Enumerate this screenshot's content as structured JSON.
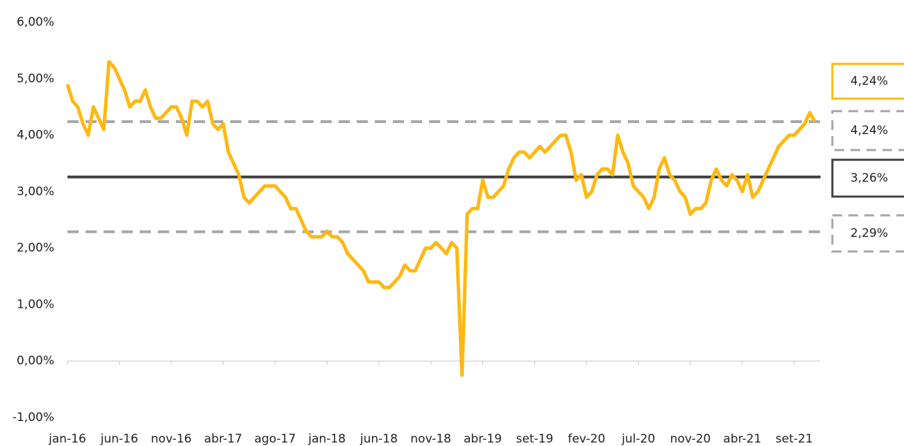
{
  "chart_data": {
    "type": "line",
    "categories": [
      "jan-16",
      null,
      null,
      null,
      null,
      null,
      null,
      null,
      null,
      null,
      "jun-16",
      null,
      null,
      null,
      null,
      null,
      null,
      null,
      null,
      null,
      "nov-16",
      null,
      null,
      null,
      null,
      null,
      null,
      null,
      null,
      null,
      "abr-17",
      null,
      null,
      null,
      null,
      null,
      null,
      null,
      null,
      null,
      "ago-17",
      null,
      null,
      null,
      null,
      null,
      null,
      null,
      null,
      null,
      "jan-18",
      null,
      null,
      null,
      null,
      null,
      null,
      null,
      null,
      null,
      "jun-18",
      null,
      null,
      null,
      null,
      null,
      null,
      null,
      null,
      null,
      "nov-18",
      null,
      null,
      null,
      null,
      null,
      null,
      null,
      null,
      null,
      "abr-19",
      null,
      null,
      null,
      null,
      null,
      null,
      null,
      null,
      null,
      "set-19",
      null,
      null,
      null,
      null,
      null,
      null,
      null,
      null,
      null,
      "fev-20",
      null,
      null,
      null,
      null,
      null,
      null,
      null,
      null,
      null,
      "jul-20",
      null,
      null,
      null,
      null,
      null,
      null,
      null,
      null,
      null,
      "nov-20",
      null,
      null,
      null,
      null,
      null,
      null,
      null,
      null,
      null,
      "abr-21",
      null,
      null,
      null,
      null,
      null,
      null,
      null,
      null,
      null,
      "set-21",
      null,
      null,
      null,
      null
    ],
    "series": [
      {
        "color": "#fdb913",
        "values": [
          4.9,
          4.6,
          4.5,
          4.2,
          4.0,
          4.5,
          4.3,
          4.1,
          5.3,
          5.2,
          5.0,
          4.8,
          4.5,
          4.6,
          4.6,
          4.8,
          4.5,
          4.3,
          4.3,
          4.4,
          4.5,
          4.5,
          4.3,
          4.0,
          4.6,
          4.6,
          4.5,
          4.6,
          4.2,
          4.1,
          4.2,
          3.7,
          3.5,
          3.3,
          2.9,
          2.8,
          2.9,
          3.0,
          3.1,
          3.1,
          3.1,
          3.0,
          2.9,
          2.7,
          2.7,
          2.5,
          2.3,
          2.2,
          2.2,
          2.2,
          2.3,
          2.2,
          2.2,
          2.1,
          1.9,
          1.8,
          1.7,
          1.6,
          1.4,
          1.4,
          1.4,
          1.3,
          1.3,
          1.4,
          1.5,
          1.7,
          1.6,
          1.6,
          1.8,
          2.0,
          2.0,
          2.1,
          2.0,
          1.9,
          2.1,
          2.0,
          -0.25,
          2.6,
          2.7,
          2.7,
          3.2,
          2.9,
          2.9,
          3.0,
          3.1,
          3.4,
          3.6,
          3.7,
          3.7,
          3.6,
          3.7,
          3.8,
          3.7,
          3.8,
          3.9,
          4.0,
          4.0,
          3.7,
          3.2,
          3.3,
          2.9,
          3.0,
          3.3,
          3.4,
          3.4,
          3.3,
          4.0,
          3.7,
          3.5,
          3.1,
          3.0,
          2.9,
          2.7,
          2.9,
          3.4,
          3.6,
          3.3,
          3.2,
          3.0,
          2.9,
          2.6,
          2.7,
          2.7,
          2.8,
          3.2,
          3.4,
          3.2,
          3.1,
          3.3,
          3.2,
          3.0,
          3.3,
          2.9,
          3.0,
          3.2,
          3.4,
          3.6,
          3.8,
          3.9,
          4.0,
          4.0,
          4.1,
          4.2,
          4.4,
          4.24
        ]
      }
    ],
    "ylim": [
      -1,
      6
    ],
    "yticks": [
      {
        "value": -1,
        "label": "-1,00%"
      },
      {
        "value": 0,
        "label": "0,00%"
      },
      {
        "value": 1,
        "label": "1,00%"
      },
      {
        "value": 2,
        "label": "2,00%"
      },
      {
        "value": 3,
        "label": "3,00%"
      },
      {
        "value": 4,
        "label": "4,00%"
      },
      {
        "value": 5,
        "label": "5,00%"
      },
      {
        "value": 6,
        "label": "6,00%"
      }
    ],
    "reference_lines": [
      {
        "value": 4.24,
        "label": "4,24%",
        "style": "dashed",
        "color": "#a6a6a6"
      },
      {
        "value": 3.26,
        "label": "3,26%",
        "style": "solid",
        "color": "#404040"
      },
      {
        "value": 2.29,
        "label": "2,29%",
        "style": "dashed",
        "color": "#a6a6a6"
      }
    ],
    "current": {
      "value": 4.24,
      "label": "4,24%",
      "color": "#fdb913"
    }
  }
}
